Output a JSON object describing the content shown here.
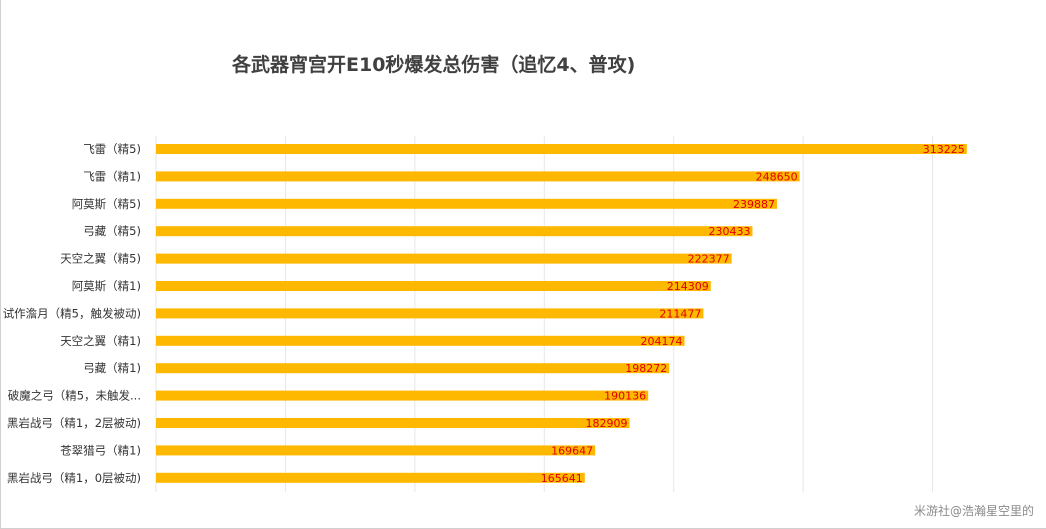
{
  "chart_data": {
    "type": "bar",
    "orientation": "horizontal",
    "title": "各武器宵宫开E10秒爆发总伤害（追忆4、普攻)",
    "categories": [
      "飞雷（精5)",
      "飞雷（精1)",
      "阿莫斯（精5)",
      "弓藏（精5)",
      "天空之翼（精5)",
      "阿莫斯（精1)",
      "试作澹月（精5，触发被动)",
      "天空之翼（精1)",
      "弓藏（精1)",
      "破魔之弓（精5，未触发...",
      "黑岩战弓（精1，2层被动)",
      "苍翠猎弓（精1)",
      "黑岩战弓（精1，0层被动)"
    ],
    "values": [
      313225,
      248650,
      239887,
      230433,
      222377,
      214309,
      211477,
      204174,
      198272,
      190136,
      182909,
      169647,
      165641
    ],
    "xlim": [
      0,
      350000
    ],
    "grid": true,
    "data_labels": true
  },
  "colors": {
    "bar": "#FFB800",
    "data_label": "#E00000",
    "grid": "#e6e6e6",
    "category_text": "#333333"
  },
  "watermark": "米游社@浩瀚星空里的"
}
